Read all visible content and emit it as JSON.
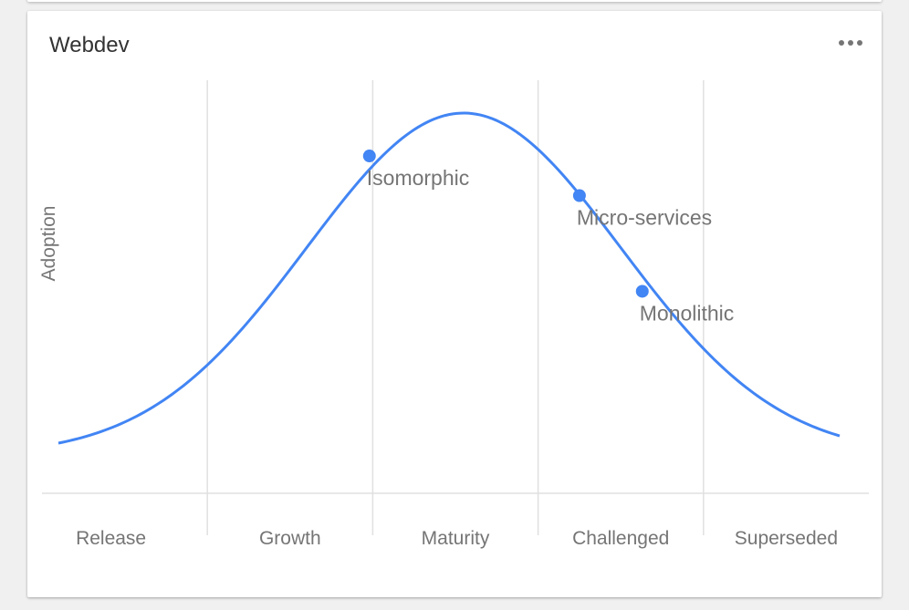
{
  "card": {
    "title": "Webdev",
    "menu_icon": "more-horizontal-icon"
  },
  "colors": {
    "curve": "#4285f4",
    "point": "#4285f4",
    "grid": "#e0e0e0",
    "text": "#757575",
    "title": "#333333"
  },
  "chart_data": {
    "type": "line",
    "title": "",
    "xlabel": "",
    "ylabel": "Adoption",
    "grid": true,
    "categories": [
      "Release",
      "Growth",
      "Maturity",
      "Challenged",
      "Superseded"
    ],
    "xlim": [
      0,
      5
    ],
    "ylim": [
      0,
      1
    ],
    "curve": "bell",
    "points": [
      {
        "label": "Isomorphic",
        "x": 1.98,
        "y": 0.87
      },
      {
        "label": "Micro-services",
        "x": 3.25,
        "y": 0.75
      },
      {
        "label": "Monolithic",
        "x": 3.63,
        "y": 0.46
      }
    ]
  }
}
